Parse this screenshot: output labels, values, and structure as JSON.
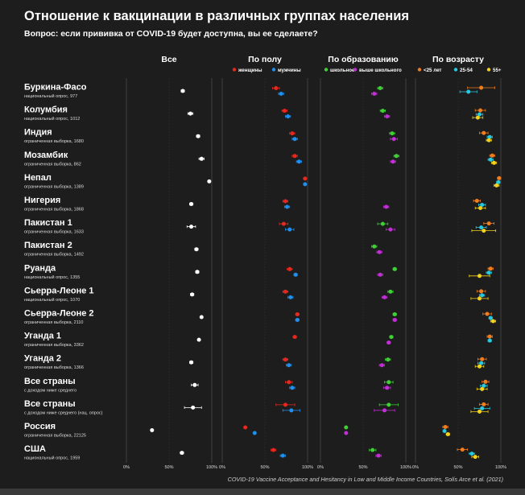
{
  "title": "Отношение к вакцинации в различных группах населения",
  "subtitle": "Вопрос: если прививка от COVID-19 будет доступна, вы ее сделаете?",
  "source": "COVID-19 Vaccine Acceptance and Hesitancy in Low and Middle Income Countries, Solís Arce et al. (2021)",
  "panels": [
    {
      "title": "Все",
      "legend": []
    },
    {
      "title": "По полу",
      "legend": [
        {
          "label": "женщины",
          "color": "#e8281e"
        },
        {
          "label": "мужчины",
          "color": "#1f8ff0"
        }
      ]
    },
    {
      "title": "По образованию",
      "legend": [
        {
          "label": "школьное",
          "color": "#3fd035"
        },
        {
          "label": "выше школьного",
          "color": "#c22fd6"
        }
      ]
    },
    {
      "title": "По возрасту",
      "legend": [
        {
          "label": "<25 лет",
          "color": "#f07d1e"
        },
        {
          "label": "25-54",
          "color": "#27c9e0"
        },
        {
          "label": "55+",
          "color": "#f5d21b"
        }
      ]
    }
  ],
  "tick_labels": [
    "0%",
    "50%",
    "100%"
  ],
  "colors": {
    "all": "#ffffff",
    "women": "#e8281e",
    "men": "#1f8ff0",
    "school": "#3fd035",
    "higher": "#c22fd6",
    "age_u25": "#f07d1e",
    "age_25_54": "#27c9e0",
    "age_55": "#f5d21b"
  },
  "chart_data": {
    "type": "scatter",
    "x_unit": "percent",
    "xlim": [
      0,
      100
    ],
    "ticks": [
      0,
      50,
      100
    ],
    "series_keys": [
      "all",
      "women",
      "men",
      "school",
      "higher",
      "age_u25",
      "age_25_54",
      "age_55"
    ],
    "rows": [
      {
        "name": "Буркина-Фасо",
        "sub": "национальный опрос, 977",
        "values": {
          "all": [
            66,
            2
          ],
          "women": [
            63,
            4
          ],
          "men": [
            69,
            3
          ],
          "school": [
            70,
            3
          ],
          "higher": [
            63,
            3
          ],
          "age_u25": [
            77,
            16
          ],
          "age_25_54": [
            62,
            10
          ],
          "age_55": null
        }
      },
      {
        "name": "Колумбия",
        "sub": "национальный опрос, 1012",
        "values": {
          "all": [
            75,
            3
          ],
          "women": [
            73,
            3
          ],
          "men": [
            77,
            3
          ],
          "school": [
            73,
            3
          ],
          "higher": [
            78,
            3
          ],
          "age_u25": [
            76,
            6
          ],
          "age_25_54": [
            75,
            4
          ],
          "age_55": [
            73,
            6
          ]
        }
      },
      {
        "name": "Индия",
        "sub": "ограниченная выборка, 1680",
        "values": {
          "all": [
            84,
            2
          ],
          "women": [
            82,
            3
          ],
          "men": [
            85,
            3
          ],
          "school": [
            84,
            3
          ],
          "higher": [
            86,
            4
          ],
          "age_u25": [
            80,
            5
          ],
          "age_25_54": [
            87,
            3
          ],
          "age_55": [
            86,
            3
          ]
        }
      },
      {
        "name": "Мозамбик",
        "sub": "ограниченная выборка, 862",
        "values": {
          "all": [
            88,
            3
          ],
          "women": [
            85,
            3
          ],
          "men": [
            90,
            3
          ],
          "school": [
            89,
            3
          ],
          "higher": [
            85,
            3
          ],
          "age_u25": [
            90,
            3
          ],
          "age_25_54": [
            88,
            3
          ],
          "age_55": [
            92,
            3
          ]
        }
      },
      {
        "name": "Непал",
        "sub": "ограниченная выборка, 1389",
        "values": {
          "all": [
            97,
            1
          ],
          "women": [
            97,
            1
          ],
          "men": [
            97,
            1
          ],
          "school": null,
          "higher": null,
          "age_u25": [
            98,
            2
          ],
          "age_25_54": [
            97,
            2
          ],
          "age_55": [
            95,
            3
          ]
        }
      },
      {
        "name": "Нигерия",
        "sub": "ограниченная выборка, 1868",
        "values": {
          "all": [
            76,
            2
          ],
          "women": [
            74,
            3
          ],
          "men": [
            76,
            3
          ],
          "school": null,
          "higher": [
            77,
            3
          ],
          "age_u25": [
            72,
            4
          ],
          "age_25_54": [
            78,
            4
          ],
          "age_55": [
            76,
            6
          ]
        }
      },
      {
        "name": "Пакистан 1",
        "sub": "ограниченная выборка, 1633",
        "values": {
          "all": [
            76,
            5
          ],
          "women": [
            72,
            5
          ],
          "men": [
            79,
            5
          ],
          "school": [
            73,
            6
          ],
          "higher": [
            82,
            5
          ],
          "age_u25": [
            86,
            6
          ],
          "age_25_54": [
            77,
            6
          ],
          "age_55": [
            80,
            14
          ]
        }
      },
      {
        "name": "Пакистан 2",
        "sub": "ограниченная выборка, 1492",
        "values": {
          "all": [
            82,
            2
          ],
          "women": null,
          "men": null,
          "school": [
            63,
            3
          ],
          "higher": [
            69,
            3
          ],
          "age_u25": null,
          "age_25_54": null,
          "age_55": null
        }
      },
      {
        "name": "Руанда",
        "sub": "национальный опрос, 1355",
        "values": {
          "all": [
            83,
            2
          ],
          "women": [
            79,
            3
          ],
          "men": [
            86,
            2
          ],
          "school": [
            87,
            2
          ],
          "higher": [
            70,
            3
          ],
          "age_u25": [
            88,
            3
          ],
          "age_25_54": [
            86,
            3
          ],
          "age_55": [
            75,
            12
          ]
        }
      },
      {
        "name": "Сьерра-Леоне 1",
        "sub": "национальный опрос, 1070",
        "values": {
          "all": [
            77,
            2
          ],
          "women": [
            74,
            3
          ],
          "men": [
            80,
            3
          ],
          "school": [
            82,
            3
          ],
          "higher": [
            75,
            3
          ],
          "age_u25": [
            77,
            5
          ],
          "age_25_54": [
            78,
            3
          ],
          "age_55": [
            75,
            10
          ]
        }
      },
      {
        "name": "Сьерра-Леоне 2",
        "sub": "ограниченная выборка, 2110",
        "values": {
          "all": [
            88,
            1
          ],
          "women": [
            88,
            2
          ],
          "men": [
            88,
            2
          ],
          "school": [
            87,
            2
          ],
          "higher": [
            87,
            2
          ],
          "age_u25": [
            84,
            5
          ],
          "age_25_54": [
            88,
            2
          ],
          "age_55": [
            91,
            3
          ]
        }
      },
      {
        "name": "Уганда 1",
        "sub": "ограниченная выборка, 3362",
        "values": {
          "all": [
            85,
            1
          ],
          "women": [
            85,
            2
          ],
          "men": null,
          "school": [
            83,
            2
          ],
          "higher": [
            80,
            2
          ],
          "age_u25": [
            87,
            3
          ],
          "age_25_54": [
            87,
            2
          ],
          "age_55": null
        }
      },
      {
        "name": "Уганда 2",
        "sub": "ограниченная выборка, 1366",
        "values": {
          "all": [
            76,
            2
          ],
          "women": [
            74,
            3
          ],
          "men": [
            78,
            3
          ],
          "school": [
            79,
            3
          ],
          "higher": [
            72,
            3
          ],
          "age_u25": [
            78,
            5
          ],
          "age_25_54": [
            77,
            4
          ],
          "age_55": [
            75,
            5
          ]
        }
      },
      {
        "name": "Все страны",
        "sub": "с доходом ниже среднего",
        "values": {
          "all": [
            80,
            4
          ],
          "women": [
            78,
            4
          ],
          "men": [
            82,
            3
          ],
          "school": [
            80,
            5
          ],
          "higher": [
            78,
            4
          ],
          "age_u25": [
            82,
            4
          ],
          "age_25_54": [
            80,
            4
          ],
          "age_55": [
            78,
            6
          ]
        }
      },
      {
        "name": "Все страны",
        "sub": "с доходом ниже среднего (нац. опрос)",
        "values": {
          "all": [
            78,
            10
          ],
          "women": [
            74,
            11
          ],
          "men": [
            81,
            10
          ],
          "school": [
            80,
            11
          ],
          "higher": [
            75,
            12
          ],
          "age_u25": [
            80,
            5
          ],
          "age_25_54": [
            78,
            9
          ],
          "age_55": [
            75,
            10
          ]
        }
      },
      {
        "name": "Россия",
        "sub": "ограниченная выборка, 22125",
        "values": {
          "all": [
            30,
            1
          ],
          "women": [
            27,
            1
          ],
          "men": [
            38,
            1
          ],
          "school": [
            30,
            1
          ],
          "higher": [
            30,
            1
          ],
          "age_u25": [
            35,
            3
          ],
          "age_25_54": [
            34,
            1
          ],
          "age_55": [
            38,
            2
          ]
        }
      },
      {
        "name": "США",
        "sub": "национальный опрос, 1959",
        "values": {
          "all": [
            65,
            2
          ],
          "women": [
            60,
            3
          ],
          "men": [
            71,
            3
          ],
          "school": [
            61,
            4
          ],
          "higher": [
            68,
            3
          ],
          "age_u25": [
            55,
            6
          ],
          "age_25_54": [
            66,
            3
          ],
          "age_55": [
            70,
            4
          ]
        }
      }
    ]
  }
}
